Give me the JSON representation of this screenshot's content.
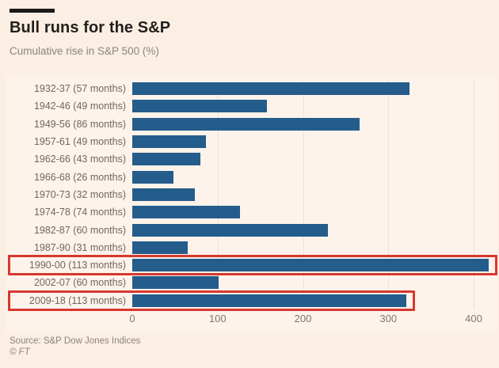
{
  "header": {
    "title": "Bull runs for the S&P",
    "subtitle": "Cumulative rise in S&P 500 (%)"
  },
  "footer": {
    "source": "Source: S&P Dow Jones Indices",
    "credit": "© FT"
  },
  "colors": {
    "background": "#fbeee2",
    "panel_background": "#fdf3ea",
    "bar": "#245c8c",
    "highlight_box": "#d6382f",
    "title_text": "#211f1d",
    "label_text": "#6e6761",
    "gridline": "#efe1d4"
  },
  "chart_data": {
    "type": "bar",
    "orientation": "horizontal",
    "title": "Bull runs for the S&P",
    "subtitle": "Cumulative rise in S&P 500 (%)",
    "xlabel": "",
    "ylabel": "",
    "xlim": [
      0,
      428
    ],
    "xticks": [
      0,
      100,
      200,
      300,
      400
    ],
    "grid": true,
    "legend": false,
    "categories": [
      "1932-37 (57 months)",
      "1942-46 (49 months)",
      "1949-56 (86 months)",
      "1957-61 (49 months)",
      "1962-66 (43 months)",
      "1966-68 (26 months)",
      "1970-73 (32 months)",
      "1974-78 (74 months)",
      "1982-87 (60 months)",
      "1987-90 (31 months)",
      "1990-00 (113 months)",
      "2002-07 (60 months)",
      "2009-18 (113 months)"
    ],
    "values": [
      325,
      158,
      266,
      86,
      80,
      48,
      73,
      126,
      229,
      65,
      418,
      101,
      321
    ],
    "highlighted_indices": [
      10,
      12
    ],
    "highlight_style": "red-outline-box-around-label-and-bar"
  }
}
